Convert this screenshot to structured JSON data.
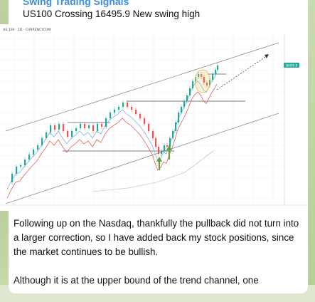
{
  "message_header": {
    "sender": "Swing Trading Signals",
    "title": "US100 Crossing 16495.9 New swing high"
  },
  "chart": {
    "symbol_line": "US 100 · 1D · CURRENCYCOM",
    "price_tag": "16495.9",
    "colors": {
      "price_up": "#26a69a",
      "price_down": "#ef5350",
      "ema_fast": "#7fb2e6",
      "ema_slow": "#e35f5f",
      "ema_long": "#c9c9c9",
      "channel": "#8d8d8d",
      "signal_arrow": "#57a53b",
      "highlight": "#e8c26a",
      "price_tag_bg": "#26a69a"
    },
    "icons": [
      "up-arrow-icon",
      "dashed-projection-arrow-icon"
    ]
  },
  "message_body": {
    "paragraphs": [
      "Following up on the Nasdaq, thankfully the pullback did not turn into a larger correction, so I have added back my stock positions, since the market continues to be bullish.",
      "Although it is at the upper bound of the trend channel, one"
    ]
  }
}
